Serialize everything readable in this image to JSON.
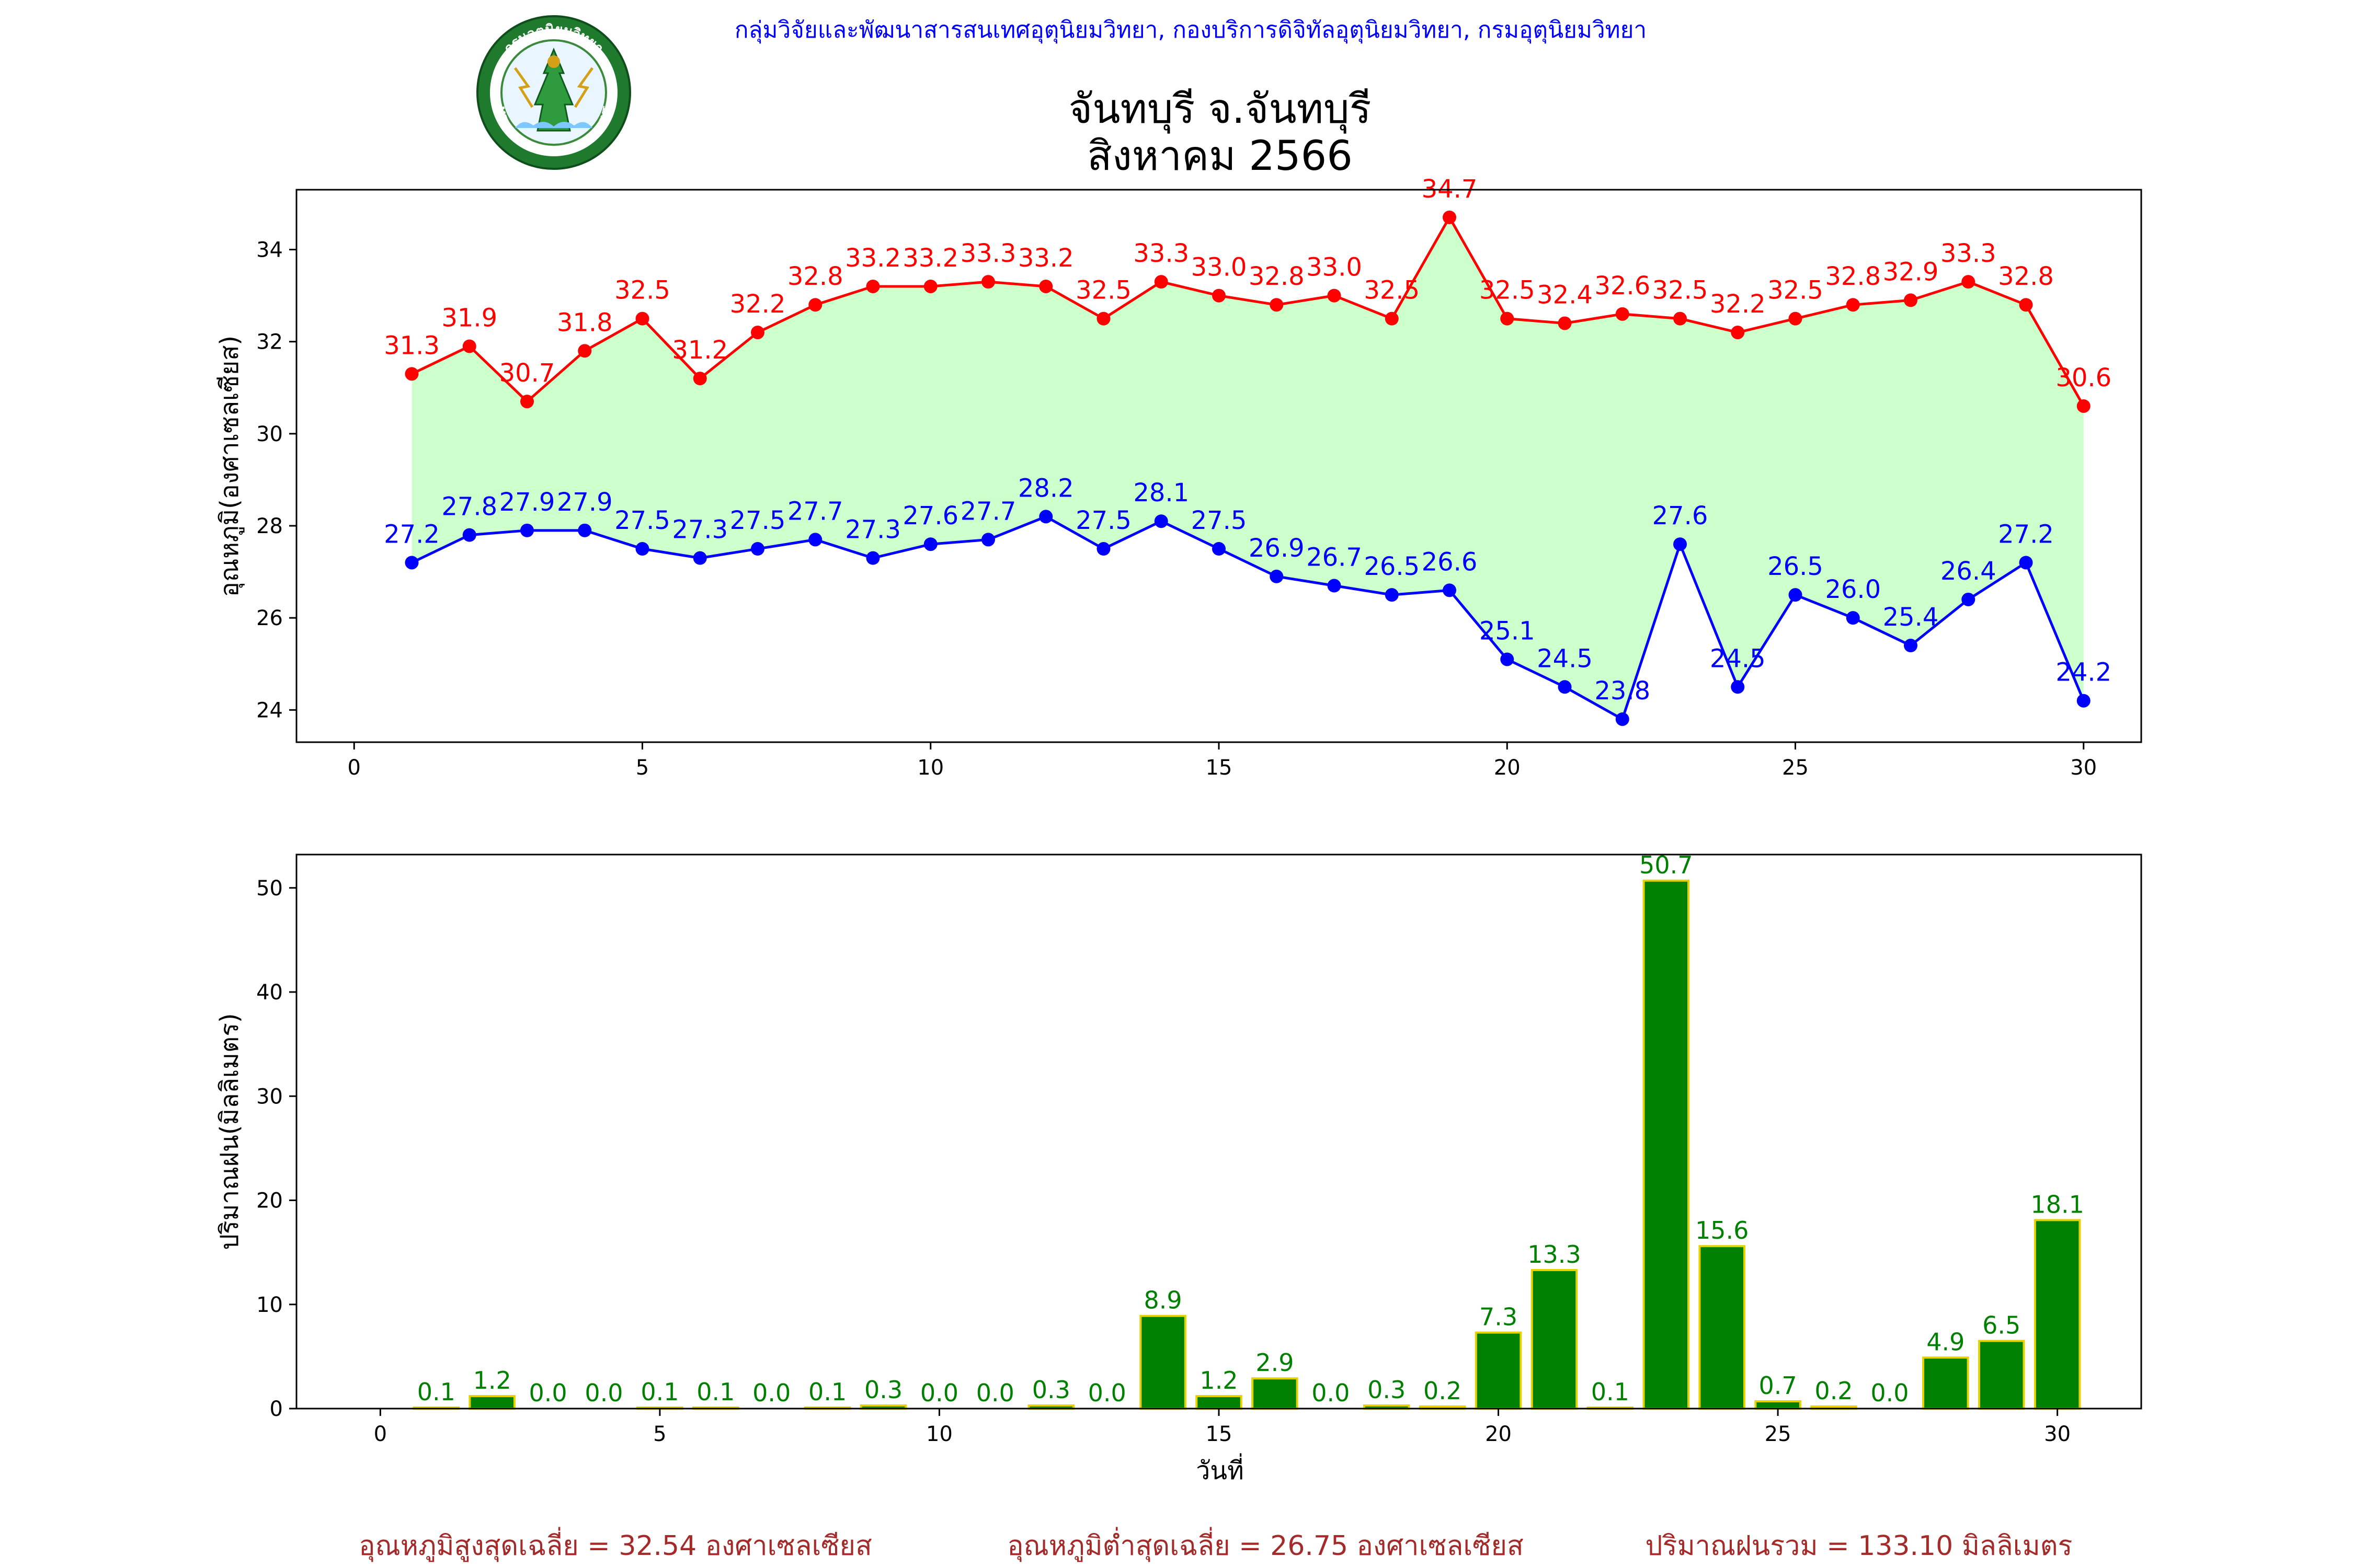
{
  "header": {
    "org_line": "กลุ่มวิจัยและพัฒนาสารสนเทศอุตุนิยมวิทยา, กองบริการดิจิทัลอุตุนิยมวิทยา, กรมอุตุนิยมวิทยา",
    "title_line1": "จันทบุรี จ.จันทบุรี",
    "title_line2": "สิงหาคม 2566",
    "logo": {
      "icon": "meteorological-department-seal-icon",
      "top_text": "กรมอุตุนิยมวิทยา",
      "bottom_text": "METEOROLOGICAL DEPARTMENT"
    }
  },
  "colors": {
    "max_temp": "#ff0000",
    "min_temp": "#0000ff",
    "fill": "#ccffcc",
    "rain_bar": "#008000",
    "rain_edge": "#e6d200",
    "rain_label": "#008000",
    "footer": "#a52a2a",
    "org_line": "#0000ff"
  },
  "chart_data": [
    {
      "type": "line",
      "ylabel": "อุณหภูมิ(องศาเซลเซียส)",
      "xlabel": "",
      "xlim": [
        -1,
        31
      ],
      "ylim": [
        23.3,
        35.3
      ],
      "x_ticks": [
        0,
        5,
        10,
        15,
        20,
        25,
        30
      ],
      "y_ticks": [
        24,
        26,
        28,
        30,
        32,
        34
      ],
      "grid": false,
      "fill_between": true,
      "x": [
        1,
        2,
        3,
        4,
        5,
        6,
        7,
        8,
        9,
        10,
        11,
        12,
        13,
        14,
        15,
        16,
        17,
        18,
        19,
        20,
        21,
        22,
        23,
        24,
        25,
        26,
        27,
        28,
        29,
        30
      ],
      "series": [
        {
          "key": "max",
          "values": [
            31.3,
            31.9,
            30.7,
            31.8,
            32.5,
            31.2,
            32.2,
            32.8,
            33.2,
            33.2,
            33.3,
            33.2,
            32.5,
            33.3,
            33.0,
            32.8,
            33.0,
            32.5,
            34.7,
            32.5,
            32.4,
            32.6,
            32.5,
            32.2,
            32.5,
            32.8,
            32.9,
            33.3,
            32.8,
            30.6
          ],
          "labels": [
            "31.3",
            "31.9",
            "30.7",
            "31.8",
            "32.5",
            "31.2",
            "32.2",
            "32.8",
            "33.2",
            "33.2",
            "33.3",
            "33.2",
            "32.5",
            "33.3",
            "33.0",
            "32.8",
            "33.0",
            "32.5",
            "34.7",
            "32.5",
            "32.4",
            "32.6",
            "32.5",
            "32.2",
            "32.5",
            "32.8",
            "32.9",
            "33.3",
            "32.8",
            "30.6"
          ]
        },
        {
          "key": "min",
          "values": [
            27.2,
            27.8,
            27.9,
            27.9,
            27.5,
            27.3,
            27.5,
            27.7,
            27.3,
            27.6,
            27.7,
            28.2,
            27.5,
            28.1,
            27.5,
            26.9,
            26.7,
            26.5,
            26.6,
            25.1,
            24.5,
            23.8,
            27.6,
            24.5,
            26.5,
            26.0,
            25.4,
            26.4,
            27.2,
            24.2
          ],
          "labels": [
            "27.2",
            "27.8",
            "27.9",
            "27.9",
            "27.5",
            "27.3",
            "27.5",
            "27.7",
            "27.3",
            "27.6",
            "27.7",
            "28.2",
            "27.5",
            "28.1",
            "27.5",
            "26.9",
            "26.7",
            "26.5",
            "26.6",
            "25.1",
            "24.5",
            "23.8",
            "27.6",
            "24.5",
            "26.5",
            "26.0",
            "25.4",
            "26.4",
            "27.2",
            "24.2"
          ]
        }
      ]
    },
    {
      "type": "bar",
      "ylabel": "ปริมาณฝน(มิลลิเมตร)",
      "xlabel": "วันที่",
      "xlim": [
        -1.5,
        31.5
      ],
      "ylim": [
        0,
        53.2
      ],
      "x_ticks": [
        0,
        5,
        10,
        15,
        20,
        25,
        30
      ],
      "y_ticks": [
        0,
        10,
        20,
        30,
        40,
        50
      ],
      "grid": false,
      "x": [
        1,
        2,
        3,
        4,
        5,
        6,
        7,
        8,
        9,
        10,
        11,
        12,
        13,
        14,
        15,
        16,
        17,
        18,
        19,
        20,
        21,
        22,
        23,
        24,
        25,
        26,
        27,
        28,
        29,
        30
      ],
      "values": [
        0.1,
        1.2,
        0.0,
        0.0,
        0.1,
        0.1,
        0.0,
        0.1,
        0.3,
        0.0,
        0.0,
        0.3,
        0.0,
        8.9,
        1.2,
        2.9,
        0.0,
        0.3,
        0.2,
        7.3,
        13.3,
        0.1,
        50.7,
        15.6,
        0.7,
        0.2,
        0.0,
        4.9,
        6.5,
        18.1
      ],
      "labels": [
        "0.1",
        "1.2",
        "0.0",
        "0.0",
        "0.1",
        "0.1",
        "0.0",
        "0.1",
        "0.3",
        "0.0",
        "0.0",
        "0.3",
        "0.0",
        "8.9",
        "1.2",
        "2.9",
        "0.0",
        "0.3",
        "0.2",
        "7.3",
        "13.3",
        "0.1",
        "50.7",
        "15.6",
        "0.7",
        "0.2",
        "0.0",
        "4.9",
        "6.5",
        "18.1"
      ]
    }
  ],
  "footer": {
    "avg_max": "อุณหภูมิสูงสุดเฉลี่ย = 32.54 องศาเซลเซียส",
    "avg_min": "อุณหภูมิต่ำสุดเฉลี่ย = 26.75 องศาเซลเซียส",
    "total_rain": "ปริมาณฝนรวม = 133.10 มิลลิเมตร"
  }
}
